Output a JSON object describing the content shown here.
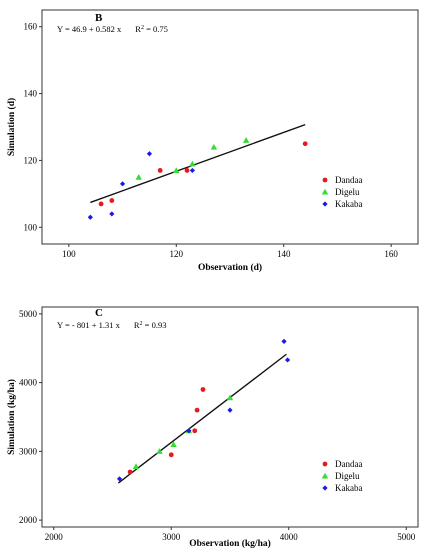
{
  "colors": {
    "Dandaa": "#e41a1c",
    "Digelu": "#33dd33",
    "Kakaba": "#1a1aee",
    "fit": "#111111"
  },
  "chart_data": [
    {
      "type": "scatter",
      "panel": "B",
      "equation": "Y = 46.9 + 0.582 x",
      "r2_label": "R",
      "r2_value": " = 0.75",
      "xlabel": "Observation (d)",
      "ylabel": "Simulation (d)",
      "xlim": [
        95,
        165
      ],
      "ylim": [
        95,
        165
      ],
      "xticks": [
        100,
        120,
        140,
        160
      ],
      "yticks": [
        100,
        120,
        140,
        160
      ],
      "grid": false,
      "legend_position": "right",
      "fit": {
        "intercept": 46.9,
        "slope": 0.582,
        "x_range": [
          104,
          144
        ]
      },
      "series": [
        {
          "name": "Dandaa",
          "marker": "circle",
          "x": [
            106,
            108,
            117,
            122,
            144
          ],
          "y": [
            107,
            108,
            117,
            117,
            125
          ]
        },
        {
          "name": "Digelu",
          "marker": "triangle",
          "x": [
            113,
            120,
            123,
            127,
            133
          ],
          "y": [
            115,
            117,
            119,
            124,
            126
          ]
        },
        {
          "name": "Kakaba",
          "marker": "diamond",
          "x": [
            104,
            108,
            110,
            115,
            123
          ],
          "y": [
            103,
            104,
            113,
            122,
            117
          ]
        }
      ]
    },
    {
      "type": "scatter",
      "panel": "C",
      "equation": "Y = - 801 + 1.31 x",
      "r2_label": "R",
      "r2_value": " = 0.93",
      "xlabel": "Observation (kg/ha)",
      "ylabel": "Simulation (kg/ha)",
      "xlim": [
        1900,
        5100
      ],
      "ylim": [
        1900,
        5100
      ],
      "xticks": [
        2000,
        3000,
        4000,
        5000
      ],
      "yticks": [
        2000,
        3000,
        4000,
        5000
      ],
      "grid": false,
      "legend_position": "right",
      "fit": {
        "intercept": -801,
        "slope": 1.31,
        "x_range": [
          2550,
          3980
        ]
      },
      "series": [
        {
          "name": "Dandaa",
          "marker": "circle",
          "x": [
            2650,
            3000,
            3200,
            3220,
            3270
          ],
          "y": [
            2700,
            2950,
            3300,
            3600,
            3900
          ]
        },
        {
          "name": "Digelu",
          "marker": "triangle",
          "x": [
            2700,
            2900,
            3020,
            3150,
            3500
          ],
          "y": [
            2780,
            3000,
            3100,
            3300,
            3780
          ]
        },
        {
          "name": "Kakaba",
          "marker": "diamond",
          "x": [
            2560,
            3150,
            3500,
            3960,
            3990
          ],
          "y": [
            2600,
            3300,
            3600,
            4600,
            4330
          ]
        }
      ]
    }
  ]
}
